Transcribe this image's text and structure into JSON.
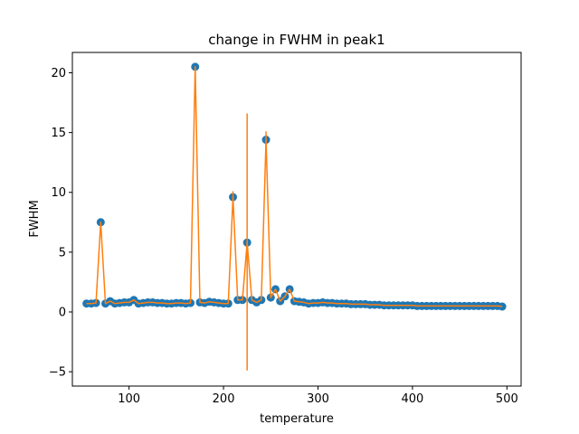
{
  "chart_data": {
    "type": "scatter",
    "title": "change in FWHM in peak1",
    "xlabel": "temperature",
    "ylabel": "FWHM",
    "xlim": [
      40,
      515
    ],
    "ylim": [
      -6.2,
      21.7
    ],
    "xticks": [
      100,
      200,
      300,
      400,
      500
    ],
    "yticks": [
      -5,
      0,
      5,
      10,
      15,
      20
    ],
    "grid": false,
    "marker_color": "#1f77b4",
    "line_color": "#ff7f0e",
    "series": [
      {
        "type": "scatter",
        "x": [
          55,
          60,
          65,
          70,
          75,
          80,
          85,
          90,
          95,
          100,
          105,
          110,
          115,
          120,
          125,
          130,
          135,
          140,
          145,
          150,
          155,
          160,
          165,
          170,
          175,
          180,
          185,
          190,
          195,
          200,
          205,
          210,
          215,
          220,
          225,
          230,
          235,
          240,
          245,
          250,
          255,
          260,
          265,
          270,
          275,
          280,
          285,
          290,
          295,
          300,
          305,
          310,
          315,
          320,
          325,
          330,
          335,
          340,
          345,
          350,
          355,
          360,
          365,
          370,
          375,
          380,
          385,
          390,
          395,
          400,
          405,
          410,
          415,
          420,
          425,
          430,
          435,
          440,
          445,
          450,
          455,
          460,
          465,
          470,
          475,
          480,
          485,
          490,
          495
        ],
        "y": [
          0.7,
          0.7,
          0.75,
          7.5,
          0.7,
          0.9,
          0.7,
          0.75,
          0.8,
          0.8,
          1.0,
          0.7,
          0.75,
          0.8,
          0.8,
          0.75,
          0.75,
          0.7,
          0.7,
          0.75,
          0.75,
          0.7,
          0.75,
          20.5,
          0.8,
          0.75,
          0.85,
          0.8,
          0.75,
          0.7,
          0.7,
          9.6,
          1.0,
          1.0,
          5.8,
          1.0,
          0.8,
          1.0,
          14.4,
          1.2,
          1.9,
          0.9,
          1.3,
          1.9,
          0.9,
          0.85,
          0.8,
          0.7,
          0.75,
          0.75,
          0.8,
          0.75,
          0.75,
          0.7,
          0.7,
          0.7,
          0.65,
          0.65,
          0.65,
          0.65,
          0.6,
          0.6,
          0.6,
          0.55,
          0.55,
          0.55,
          0.55,
          0.55,
          0.55,
          0.55,
          0.5,
          0.5,
          0.5,
          0.5,
          0.5,
          0.5,
          0.5,
          0.5,
          0.5,
          0.5,
          0.5,
          0.5,
          0.5,
          0.5,
          0.5,
          0.5,
          0.5,
          0.5,
          0.45
        ]
      },
      {
        "type": "line",
        "x": [
          55,
          60,
          65,
          70,
          75,
          80,
          85,
          90,
          95,
          100,
          105,
          110,
          115,
          120,
          125,
          130,
          135,
          140,
          145,
          150,
          155,
          160,
          165,
          170,
          175,
          180,
          185,
          190,
          195,
          200,
          205,
          210,
          215,
          220,
          225,
          230,
          235,
          240,
          245,
          250,
          255,
          260,
          265,
          270,
          275,
          280,
          285,
          290,
          295,
          300,
          305,
          310,
          315,
          320,
          325,
          330,
          335,
          340,
          345,
          350,
          355,
          360,
          365,
          370,
          375,
          380,
          385,
          390,
          395,
          400,
          405,
          410,
          415,
          420,
          425,
          430,
          435,
          440,
          445,
          450,
          455,
          460,
          465,
          470,
          475,
          480,
          485,
          490,
          495
        ],
        "y": [
          0.7,
          0.7,
          0.75,
          7.5,
          0.7,
          0.9,
          0.7,
          0.75,
          0.8,
          0.8,
          1.0,
          0.7,
          0.75,
          0.8,
          0.8,
          0.75,
          0.75,
          0.7,
          0.7,
          0.75,
          0.75,
          0.7,
          0.75,
          20.5,
          0.8,
          0.75,
          0.85,
          0.8,
          0.75,
          0.7,
          0.7,
          9.6,
          1.0,
          1.0,
          5.8,
          1.0,
          0.8,
          1.0,
          14.4,
          1.2,
          1.9,
          0.9,
          1.3,
          1.9,
          0.9,
          0.85,
          0.8,
          0.7,
          0.75,
          0.75,
          0.8,
          0.75,
          0.75,
          0.7,
          0.7,
          0.7,
          0.65,
          0.65,
          0.65,
          0.65,
          0.6,
          0.6,
          0.6,
          0.55,
          0.55,
          0.55,
          0.55,
          0.55,
          0.55,
          0.55,
          0.5,
          0.5,
          0.5,
          0.5,
          0.5,
          0.5,
          0.5,
          0.5,
          0.5,
          0.5,
          0.5,
          0.5,
          0.5,
          0.5,
          0.5,
          0.5,
          0.5,
          0.5,
          0.45
        ]
      }
    ],
    "error_bars": [
      {
        "x": 210,
        "low": 9.3,
        "high": 10.1
      },
      {
        "x": 225,
        "low": -4.9,
        "high": 16.6
      },
      {
        "x": 245,
        "low": 14.0,
        "high": 15.1
      }
    ]
  }
}
